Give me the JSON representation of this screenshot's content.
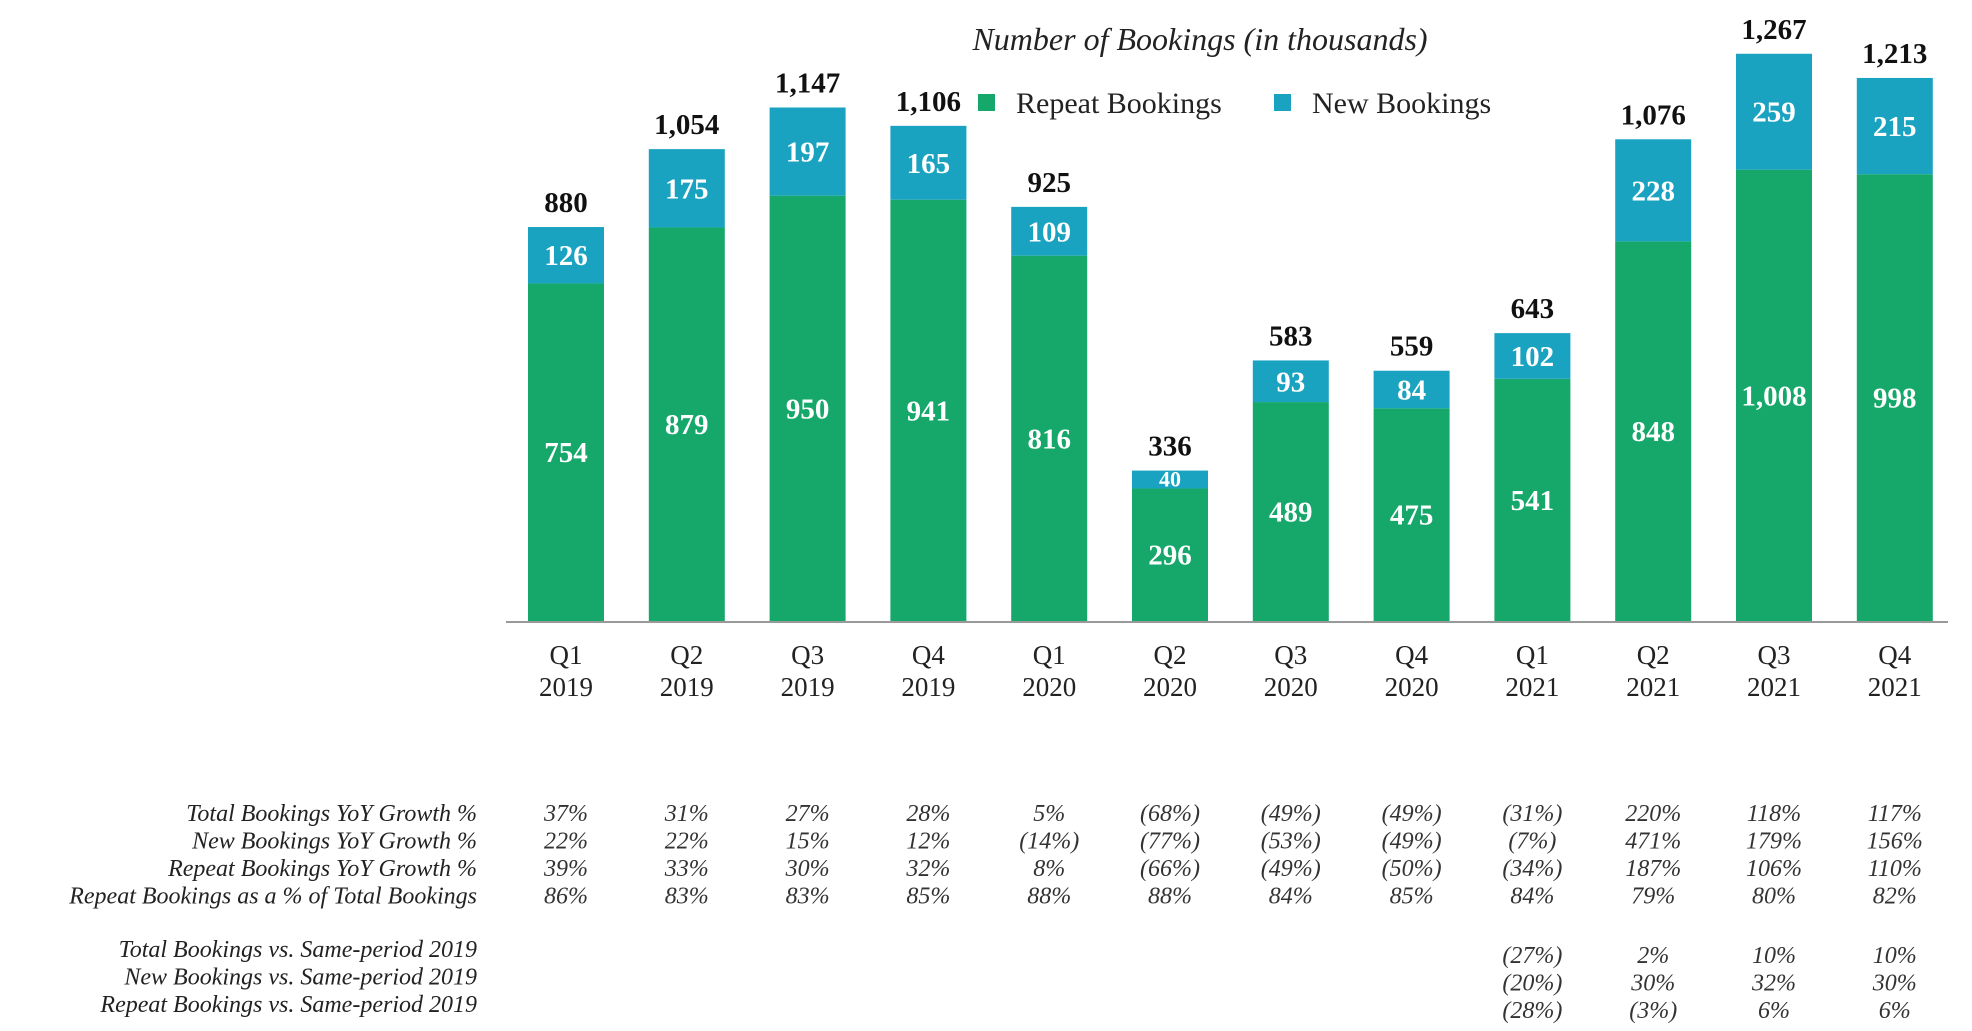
{
  "chart_data": {
    "type": "bar",
    "stacked": true,
    "title": "Number of Bookings (in thousands)",
    "legend_position": "top",
    "colors": {
      "repeat": "#16A86B",
      "new": "#1AA3C1"
    },
    "categories": [
      [
        "Q1",
        "2019"
      ],
      [
        "Q2",
        "2019"
      ],
      [
        "Q3",
        "2019"
      ],
      [
        "Q4",
        "2019"
      ],
      [
        "Q1",
        "2020"
      ],
      [
        "Q2",
        "2020"
      ],
      [
        "Q3",
        "2020"
      ],
      [
        "Q4",
        "2020"
      ],
      [
        "Q1",
        "2021"
      ],
      [
        "Q2",
        "2021"
      ],
      [
        "Q3",
        "2021"
      ],
      [
        "Q4",
        "2021"
      ]
    ],
    "series": [
      {
        "name": "Repeat Bookings",
        "values": [
          754,
          879,
          950,
          941,
          816,
          296,
          489,
          475,
          541,
          848,
          1008,
          998
        ],
        "labels": [
          "754",
          "879",
          "950",
          "941",
          "816",
          "296",
          "489",
          "475",
          "541",
          "848",
          "1,008",
          "998"
        ]
      },
      {
        "name": "New Bookings",
        "values": [
          126,
          175,
          197,
          165,
          109,
          40,
          93,
          84,
          102,
          228,
          259,
          215
        ],
        "labels": [
          "126",
          "175",
          "197",
          "165",
          "109",
          "40",
          "93",
          "84",
          "102",
          "228",
          "259",
          "215"
        ]
      }
    ],
    "totals": [
      "880",
      "1,054",
      "1,147",
      "1,106",
      "925",
      "336",
      "583",
      "559",
      "643",
      "1,076",
      "1,267",
      "1,213"
    ],
    "ylim": [
      0,
      1450
    ],
    "grid": false,
    "xlabel": "",
    "ylabel": "",
    "table": {
      "group1": [
        {
          "label": "Total Bookings YoY Growth %",
          "values": [
            "37%",
            "31%",
            "27%",
            "28%",
            "5%",
            "(68%)",
            "(49%)",
            "(49%)",
            "(31%)",
            "220%",
            "118%",
            "117%"
          ]
        },
        {
          "label": "New Bookings YoY Growth %",
          "values": [
            "22%",
            "22%",
            "15%",
            "12%",
            "(14%)",
            "(77%)",
            "(53%)",
            "(49%)",
            "(7%)",
            "471%",
            "179%",
            "156%"
          ]
        },
        {
          "label": "Repeat Bookings YoY Growth %",
          "values": [
            "39%",
            "33%",
            "30%",
            "32%",
            "8%",
            "(66%)",
            "(49%)",
            "(50%)",
            "(34%)",
            "187%",
            "106%",
            "110%"
          ]
        },
        {
          "label": "Repeat Bookings as a % of Total Bookings",
          "values": [
            "86%",
            "83%",
            "83%",
            "85%",
            "88%",
            "88%",
            "84%",
            "85%",
            "84%",
            "79%",
            "80%",
            "82%"
          ]
        }
      ],
      "group2": [
        {
          "label": "Total Bookings vs. Same-period 2019",
          "values": [
            "",
            "",
            "",
            "",
            "",
            "",
            "",
            "",
            "(27%)",
            "2%",
            "10%",
            "10%"
          ]
        },
        {
          "label": "New Bookings vs. Same-period 2019",
          "values": [
            "",
            "",
            "",
            "",
            "",
            "",
            "",
            "",
            "(20%)",
            "30%",
            "32%",
            "30%"
          ]
        },
        {
          "label": "Repeat Bookings vs. Same-period 2019",
          "values": [
            "",
            "",
            "",
            "",
            "",
            "",
            "",
            "",
            "(28%)",
            "(3%)",
            "6%",
            "6%"
          ]
        }
      ]
    }
  }
}
